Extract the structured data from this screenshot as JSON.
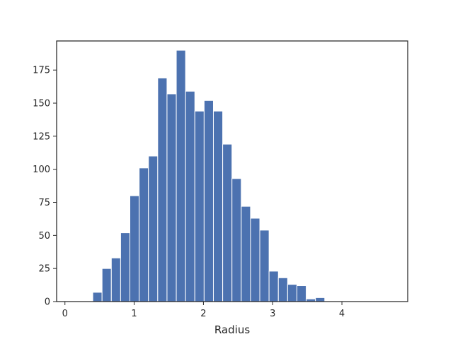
{
  "chart_data": {
    "type": "bar",
    "title": "",
    "xlabel": "Radius",
    "ylabel": "",
    "xlim": [
      -0.12,
      4.95
    ],
    "ylim": [
      0,
      197
    ],
    "xticks": [
      0,
      1,
      2,
      3,
      4
    ],
    "yticks": [
      0,
      25,
      50,
      75,
      100,
      125,
      150,
      175
    ],
    "grid": false,
    "bar_color": "#4C72B0",
    "bin_edges": [
      0.0,
      0.134,
      0.268,
      0.402,
      0.536,
      0.67,
      0.804,
      0.938,
      1.072,
      1.206,
      1.34,
      1.474,
      1.608,
      1.742,
      1.876,
      2.01,
      2.144,
      2.278,
      2.412,
      2.546,
      2.68,
      2.814,
      2.948,
      3.082,
      3.216,
      3.35,
      3.484,
      3.618,
      3.752,
      3.886,
      4.02,
      4.154,
      4.288,
      4.422,
      4.556,
      4.69
    ],
    "counts": [
      0,
      0,
      0,
      7,
      25,
      33,
      52,
      80,
      101,
      110,
      169,
      157,
      190,
      159,
      144,
      152,
      144,
      119,
      93,
      72,
      63,
      54,
      23,
      18,
      13,
      12,
      2,
      3,
      0,
      0,
      0,
      0,
      0,
      0,
      0
    ]
  }
}
